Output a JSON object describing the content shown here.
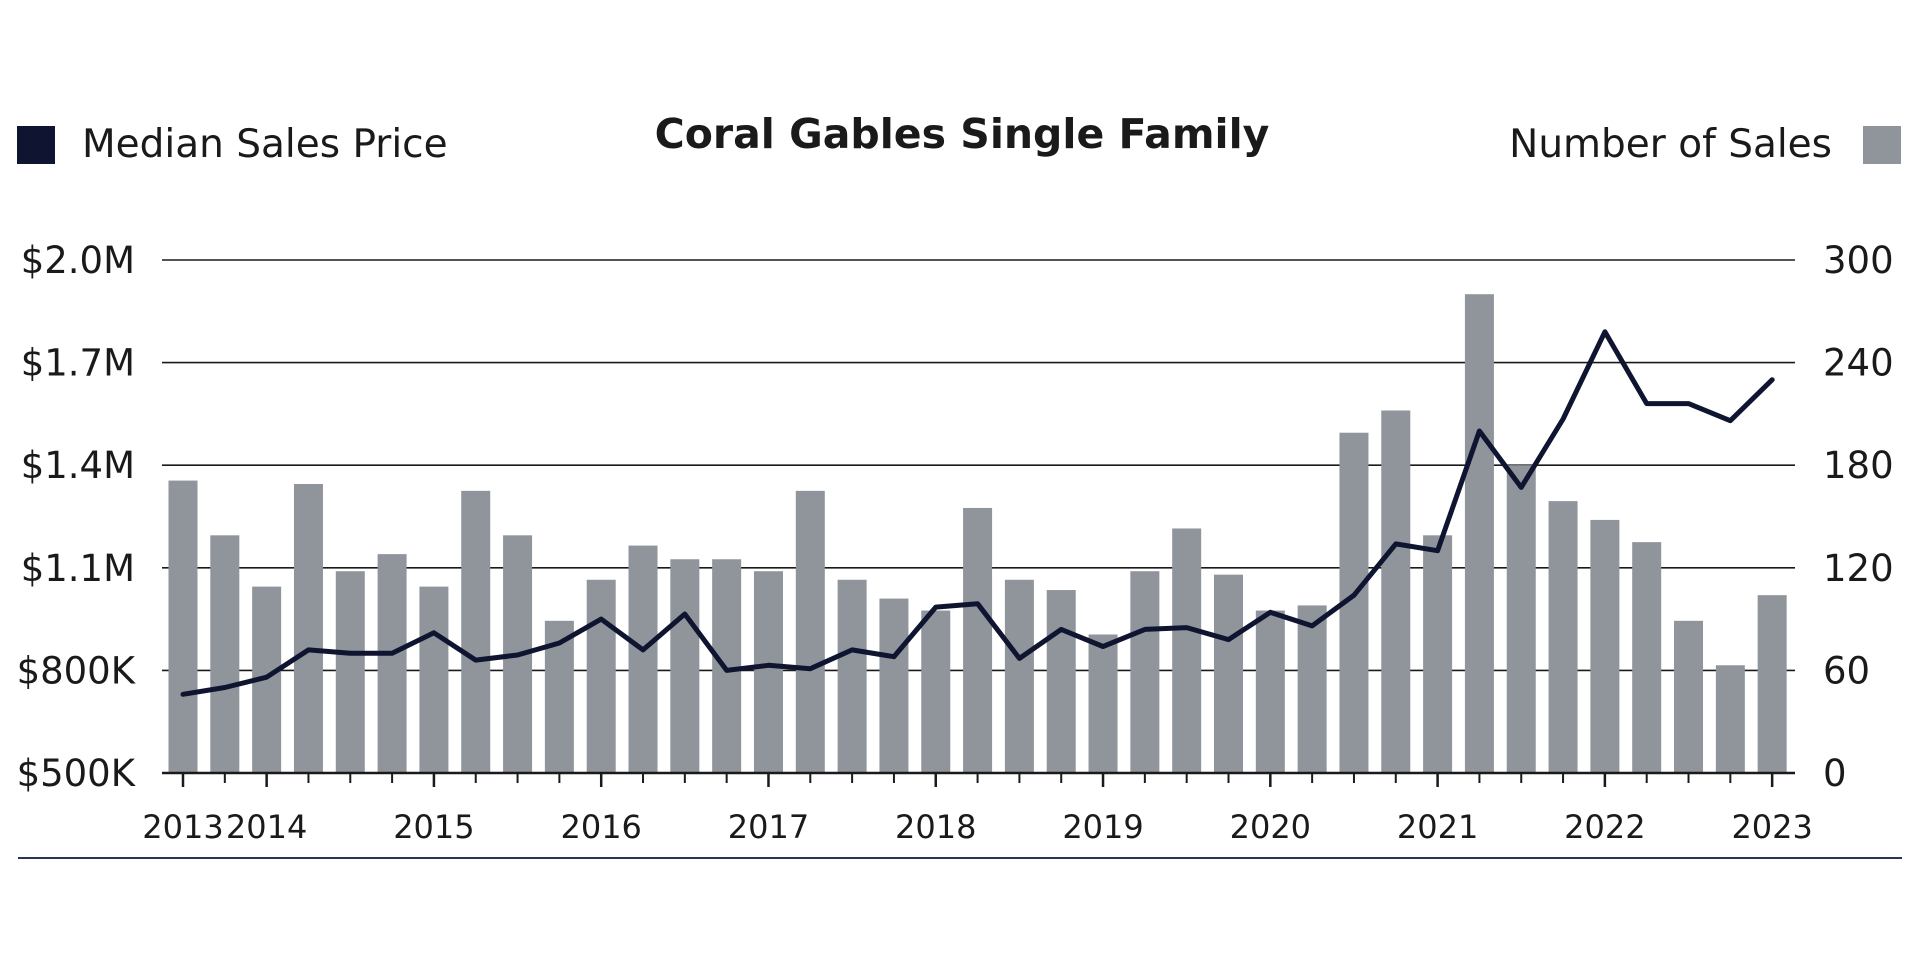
{
  "chart_data": {
    "type": "bar+line",
    "title": "Coral Gables Single Family",
    "legend": {
      "line_label": "Median Sales Price",
      "bar_label": "Number of Sales",
      "placement": "top"
    },
    "x_tick_labels": [
      "2013",
      "2014",
      "2015",
      "2016",
      "2017",
      "2018",
      "2019",
      "2020",
      "2021",
      "2022",
      "2023"
    ],
    "x_tick_quarter_index": [
      0,
      2,
      6,
      10,
      14,
      18,
      22,
      26,
      30,
      34,
      38
    ],
    "left_axis": {
      "tick_labels": [
        "$500K",
        "$800K",
        "$1.1M",
        "$1.4M",
        "$1.7M",
        "$2.0M"
      ],
      "tick_values": [
        500000,
        800000,
        1100000,
        1400000,
        1700000,
        2000000
      ],
      "ylim": [
        500000,
        2000000
      ]
    },
    "right_axis": {
      "tick_labels": [
        "0",
        "60",
        "120",
        "180",
        "240",
        "300"
      ],
      "tick_values": [
        0,
        60,
        120,
        180,
        240,
        300
      ],
      "ylim": [
        0,
        300
      ]
    },
    "grid": true,
    "series": [
      {
        "type": "bar",
        "axis": "right",
        "color": "#8f959b",
        "values": [
          171,
          139,
          109,
          169,
          118,
          128,
          109,
          165,
          139,
          89,
          113,
          133,
          125,
          125,
          118,
          165,
          113,
          102,
          95,
          155,
          113,
          107,
          81,
          118,
          143,
          116,
          95,
          98,
          199,
          212,
          139,
          280,
          180,
          159,
          148,
          135,
          89,
          63,
          104
        ]
      },
      {
        "type": "line",
        "axis": "left",
        "color": "#0f1530",
        "values": [
          730000,
          750000,
          780000,
          860000,
          850000,
          850000,
          910000,
          830000,
          845000,
          880000,
          950000,
          860000,
          965000,
          800000,
          815000,
          805000,
          860000,
          840000,
          985000,
          995000,
          835000,
          920000,
          870000,
          920000,
          925000,
          890000,
          970000,
          930000,
          1020000,
          1170000,
          1150000,
          1500000,
          1335000,
          1535000,
          1790000,
          1580000,
          1580000,
          1530000,
          1650000
        ]
      }
    ],
    "colors": {
      "bar": "#8f959b",
      "line": "#0f1530",
      "grid": "#1a1a1a",
      "baseline_rule": "#2a3550"
    }
  }
}
